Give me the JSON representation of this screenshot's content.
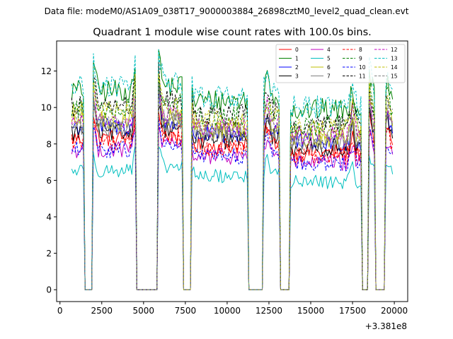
{
  "suptitle": "Data file: modeM0/AS1A09_038T17_9000003884_26898cztM0_level2_quad_clean.evt",
  "chart_data": {
    "type": "line",
    "title": "Quadrant 1 module wise count rates with 100.0s bins.",
    "xlabel": "",
    "ylabel": "",
    "x_offset_label": "+3.381e8",
    "xlim": [
      -200,
      20800
    ],
    "ylim": [
      -0.65,
      13.65
    ],
    "xticks": [
      0,
      2500,
      5000,
      7500,
      10000,
      12500,
      15000,
      17500,
      20000
    ],
    "xtick_labels": [
      "0",
      "2500",
      "5000",
      "7500",
      "10000",
      "12500",
      "15000",
      "17500",
      "20000"
    ],
    "yticks": [
      0,
      2,
      4,
      6,
      8,
      10,
      12
    ],
    "ytick_labels": [
      "0",
      "2",
      "4",
      "6",
      "8",
      "10",
      "12"
    ],
    "grid": false,
    "legend_position": "top-right",
    "legend_columns": 4,
    "bin_width_s": 100,
    "x_start": 700,
    "x_end": 19900,
    "gaps": [
      [
        1500,
        1900
      ],
      [
        4600,
        5800
      ],
      [
        7400,
        7800
      ],
      [
        11300,
        12100
      ],
      [
        13200,
        13700
      ],
      [
        18100,
        18400
      ],
      [
        18900,
        19400
      ]
    ],
    "series": [
      {
        "name": "0",
        "color": "#ff0000",
        "dash": "solid",
        "level": 8.0
      },
      {
        "name": "1",
        "color": "#008000",
        "dash": "solid",
        "level": 10.5
      },
      {
        "name": "2",
        "color": "#0000ff",
        "dash": "solid",
        "level": 8.6
      },
      {
        "name": "3",
        "color": "#000000",
        "dash": "solid",
        "level": 8.3
      },
      {
        "name": "4",
        "color": "#bf00bf",
        "dash": "solid",
        "level": 7.4
      },
      {
        "name": "5",
        "color": "#00bfbf",
        "dash": "solid",
        "level": 6.3
      },
      {
        "name": "6",
        "color": "#bfbf00",
        "dash": "solid",
        "level": 8.9
      },
      {
        "name": "7",
        "color": "#808080",
        "dash": "solid",
        "level": 8.6
      },
      {
        "name": "8",
        "color": "#ff0000",
        "dash": "dashed",
        "level": 7.8
      },
      {
        "name": "9",
        "color": "#008000",
        "dash": "dashed",
        "level": 9.6
      },
      {
        "name": "10",
        "color": "#0000ff",
        "dash": "dashed",
        "level": 7.4
      },
      {
        "name": "11",
        "color": "#000000",
        "dash": "dashed",
        "level": 9.7
      },
      {
        "name": "12",
        "color": "#bf00bf",
        "dash": "dashed",
        "level": 9.0
      },
      {
        "name": "13",
        "color": "#00bfbf",
        "dash": "dashed",
        "level": 10.7
      },
      {
        "name": "14",
        "color": "#bfbf00",
        "dash": "dashed",
        "level": 9.4
      },
      {
        "name": "15",
        "color": "#808080",
        "dash": "dashed",
        "level": 8.8
      }
    ]
  }
}
